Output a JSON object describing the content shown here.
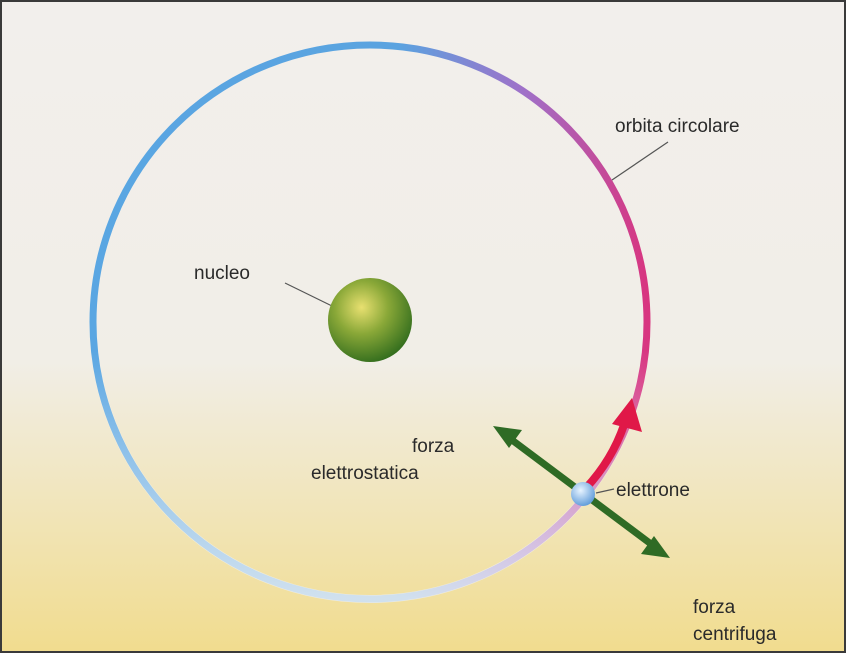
{
  "labels": {
    "orbit": "orbita circolare",
    "nucleus": "nucleo",
    "electrostatic_force": [
      "forza",
      "elettrostatica"
    ],
    "electron": "elettrone",
    "centrifugal_force": [
      "forza",
      "centrifuga"
    ]
  }
}
